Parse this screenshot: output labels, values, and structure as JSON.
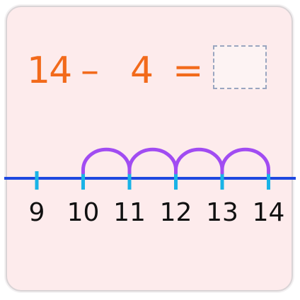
{
  "equation": {
    "minuend": "14",
    "operator": "–",
    "subtrahend": "4",
    "equals": "=",
    "answer": ""
  },
  "number_line": {
    "labels": [
      "9",
      "10",
      "11",
      "12",
      "13",
      "14"
    ],
    "jumps": 4,
    "colors": {
      "line": "#1e48e0",
      "tick": "#19b3e6",
      "arc": "#a14cf2",
      "equation": "#f26a1b",
      "background": "#fdebec"
    }
  }
}
